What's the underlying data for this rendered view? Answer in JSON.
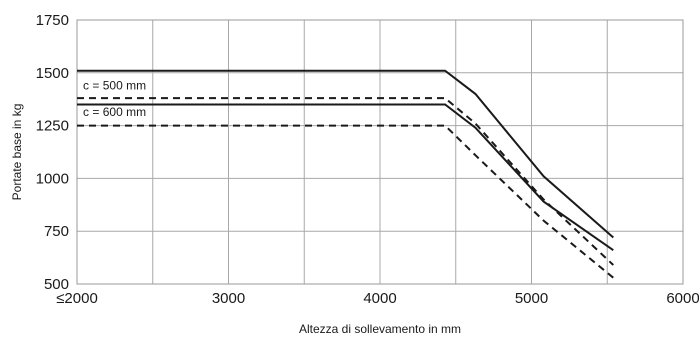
{
  "chart_data": {
    "type": "line",
    "xlabel": "Altezza di sollevamento in mm",
    "ylabel": "Portate base in kg",
    "xlim": [
      2000,
      6000
    ],
    "ylim": [
      500,
      1750
    ],
    "x_ticks": [
      2000,
      3000,
      4000,
      5000,
      6000
    ],
    "x_tick_labels": [
      "≤2000",
      "3000",
      "4000",
      "5000",
      "6000"
    ],
    "y_ticks": [
      500,
      750,
      1000,
      1250,
      1500,
      1750
    ],
    "y_tick_labels": [
      "500",
      "750",
      "1000",
      "1250",
      "1500",
      "1750"
    ],
    "grid": true,
    "annotations": [
      {
        "text": "c = 500 mm",
        "x": 2040,
        "y": 1420
      },
      {
        "text": "c = 600 mm",
        "x": 2040,
        "y": 1295
      }
    ],
    "series": [
      {
        "style": "solid",
        "x": [
          2000,
          4430,
          4630,
          5080,
          5540
        ],
        "y": [
          1510,
          1510,
          1400,
          1010,
          720
        ]
      },
      {
        "style": "dashed",
        "x": [
          2000,
          4430,
          4630,
          5080,
          5540
        ],
        "y": [
          1380,
          1380,
          1260,
          900,
          590
        ]
      },
      {
        "style": "solid",
        "x": [
          2000,
          4430,
          4630,
          5080,
          5540
        ],
        "y": [
          1350,
          1350,
          1240,
          890,
          660
        ]
      },
      {
        "style": "dashed",
        "x": [
          2000,
          4430,
          4630,
          5080,
          5540
        ],
        "y": [
          1250,
          1250,
          1110,
          800,
          530
        ]
      }
    ]
  }
}
